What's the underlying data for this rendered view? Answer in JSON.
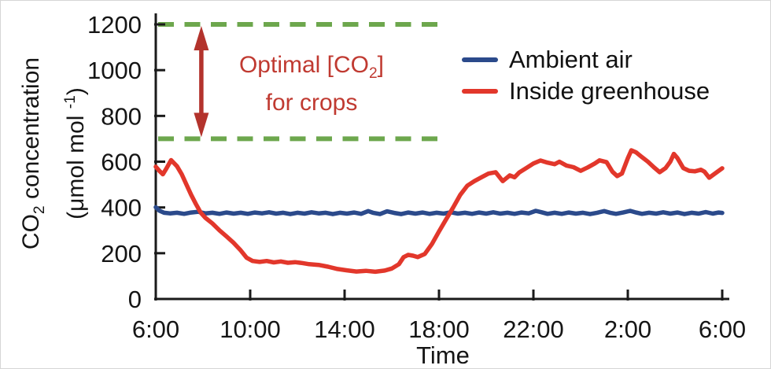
{
  "chart_data": {
    "type": "line",
    "title": "",
    "xlabel": "Time",
    "ylabel": {
      "pre": "CO",
      "sub": "2",
      "post": " concentration"
    },
    "ylabel_units": {
      "pre": "(μmol mol ",
      "sup": "-1",
      "post": ")"
    },
    "x_axis": {
      "tick_labels": [
        "6:00",
        "10:00",
        "14:00",
        "18:00",
        "22:00",
        "2:00",
        "6:00"
      ],
      "tick_hours": [
        0,
        4,
        8,
        12,
        16,
        20,
        24
      ],
      "xlim": [
        0,
        24
      ]
    },
    "y_axis": {
      "ticks": [
        0,
        200,
        400,
        600,
        800,
        1000,
        1200
      ],
      "ylim": [
        0,
        1200
      ]
    },
    "grid": false,
    "reference_band": {
      "upper_value": 1200,
      "lower_value": 700,
      "line_color": "#6da74d",
      "x_extent_hours": [
        0.1,
        12.3
      ],
      "arrow_hour": 1.93,
      "arrow_color": "#b3332c",
      "label_line1_pre": "Optimal [CO",
      "label_line1_sub": "2",
      "label_line1_post": "]",
      "label_line2": "for crops",
      "label_color": "#c03a31"
    },
    "legend": {
      "position": "top-right",
      "items": [
        {
          "label": "Ambient air",
          "color": "#2b4a8b"
        },
        {
          "label": "Inside greenhouse",
          "color": "#e2372b"
        }
      ]
    },
    "series": [
      {
        "name": "Ambient air",
        "color": "#2b4a8b",
        "points": [
          [
            0,
            401
          ],
          [
            0.15,
            386
          ],
          [
            0.35,
            377
          ],
          [
            0.6,
            374
          ],
          [
            0.9,
            377
          ],
          [
            1.2,
            372
          ],
          [
            1.5,
            378
          ],
          [
            1.8,
            381
          ],
          [
            2.1,
            374
          ],
          [
            2.4,
            377
          ],
          [
            2.7,
            372
          ],
          [
            3.0,
            378
          ],
          [
            3.3,
            373
          ],
          [
            3.6,
            377
          ],
          [
            3.9,
            372
          ],
          [
            4.2,
            378
          ],
          [
            4.5,
            374
          ],
          [
            4.8,
            379
          ],
          [
            5.1,
            373
          ],
          [
            5.4,
            377
          ],
          [
            5.7,
            371
          ],
          [
            6.0,
            377
          ],
          [
            6.3,
            373
          ],
          [
            6.6,
            379
          ],
          [
            6.9,
            374
          ],
          [
            7.2,
            377
          ],
          [
            7.5,
            371
          ],
          [
            7.8,
            377
          ],
          [
            8.1,
            373
          ],
          [
            8.4,
            378
          ],
          [
            8.7,
            372
          ],
          [
            9.0,
            384
          ],
          [
            9.2,
            377
          ],
          [
            9.5,
            371
          ],
          [
            9.8,
            383
          ],
          [
            10.1,
            376
          ],
          [
            10.4,
            371
          ],
          [
            10.7,
            378
          ],
          [
            11.0,
            373
          ],
          [
            11.3,
            378
          ],
          [
            11.6,
            372
          ],
          [
            11.9,
            377
          ],
          [
            12.2,
            373
          ],
          [
            12.5,
            379
          ],
          [
            12.8,
            373
          ],
          [
            13.1,
            377
          ],
          [
            13.4,
            372
          ],
          [
            13.7,
            378
          ],
          [
            14.0,
            373
          ],
          [
            14.3,
            379
          ],
          [
            14.6,
            373
          ],
          [
            14.9,
            377
          ],
          [
            15.2,
            372
          ],
          [
            15.5,
            378
          ],
          [
            15.8,
            374
          ],
          [
            16.1,
            385
          ],
          [
            16.35,
            379
          ],
          [
            16.6,
            372
          ],
          [
            16.9,
            377
          ],
          [
            17.2,
            372
          ],
          [
            17.5,
            378
          ],
          [
            17.8,
            373
          ],
          [
            18.1,
            377
          ],
          [
            18.4,
            371
          ],
          [
            18.7,
            377
          ],
          [
            19.0,
            384
          ],
          [
            19.25,
            377
          ],
          [
            19.5,
            372
          ],
          [
            19.8,
            378
          ],
          [
            20.1,
            385
          ],
          [
            20.35,
            378
          ],
          [
            20.6,
            372
          ],
          [
            20.9,
            377
          ],
          [
            21.2,
            373
          ],
          [
            21.5,
            379
          ],
          [
            21.8,
            373
          ],
          [
            22.1,
            378
          ],
          [
            22.4,
            371
          ],
          [
            22.7,
            377
          ],
          [
            23.0,
            373
          ],
          [
            23.3,
            380
          ],
          [
            23.6,
            373
          ],
          [
            23.85,
            378
          ],
          [
            24,
            376
          ]
        ]
      },
      {
        "name": "Inside greenhouse",
        "color": "#e2372b",
        "points": [
          [
            0,
            578
          ],
          [
            0.15,
            560
          ],
          [
            0.3,
            545
          ],
          [
            0.45,
            570
          ],
          [
            0.65,
            607
          ],
          [
            0.9,
            580
          ],
          [
            1.1,
            545
          ],
          [
            1.3,
            500
          ],
          [
            1.5,
            455
          ],
          [
            1.7,
            415
          ],
          [
            1.9,
            378
          ],
          [
            2.1,
            355
          ],
          [
            2.4,
            330
          ],
          [
            2.7,
            300
          ],
          [
            3.0,
            273
          ],
          [
            3.3,
            245
          ],
          [
            3.6,
            212
          ],
          [
            3.85,
            180
          ],
          [
            4.1,
            166
          ],
          [
            4.4,
            162
          ],
          [
            4.7,
            166
          ],
          [
            5.0,
            160
          ],
          [
            5.3,
            164
          ],
          [
            5.6,
            158
          ],
          [
            5.9,
            161
          ],
          [
            6.2,
            157
          ],
          [
            6.5,
            152
          ],
          [
            6.9,
            149
          ],
          [
            7.3,
            141
          ],
          [
            7.7,
            131
          ],
          [
            8.1,
            125
          ],
          [
            8.5,
            120
          ],
          [
            8.9,
            123
          ],
          [
            9.3,
            119
          ],
          [
            9.7,
            124
          ],
          [
            10.0,
            133
          ],
          [
            10.3,
            152
          ],
          [
            10.5,
            183
          ],
          [
            10.7,
            193
          ],
          [
            10.9,
            189
          ],
          [
            11.1,
            183
          ],
          [
            11.4,
            197
          ],
          [
            11.7,
            240
          ],
          [
            12.0,
            295
          ],
          [
            12.3,
            348
          ],
          [
            12.6,
            400
          ],
          [
            12.9,
            455
          ],
          [
            13.2,
            495
          ],
          [
            13.5,
            515
          ],
          [
            13.8,
            532
          ],
          [
            14.1,
            548
          ],
          [
            14.4,
            554
          ],
          [
            14.7,
            515
          ],
          [
            15.0,
            540
          ],
          [
            15.2,
            532
          ],
          [
            15.4,
            553
          ],
          [
            15.7,
            572
          ],
          [
            16.0,
            592
          ],
          [
            16.3,
            605
          ],
          [
            16.6,
            596
          ],
          [
            16.9,
            589
          ],
          [
            17.1,
            600
          ],
          [
            17.4,
            583
          ],
          [
            17.7,
            576
          ],
          [
            18.0,
            560
          ],
          [
            18.3,
            575
          ],
          [
            18.6,
            592
          ],
          [
            18.8,
            606
          ],
          [
            19.1,
            598
          ],
          [
            19.35,
            556
          ],
          [
            19.55,
            537
          ],
          [
            19.75,
            548
          ],
          [
            20.0,
            615
          ],
          [
            20.15,
            650
          ],
          [
            20.35,
            641
          ],
          [
            20.6,
            620
          ],
          [
            20.85,
            600
          ],
          [
            21.1,
            576
          ],
          [
            21.35,
            554
          ],
          [
            21.6,
            572
          ],
          [
            21.8,
            600
          ],
          [
            21.95,
            634
          ],
          [
            22.1,
            616
          ],
          [
            22.35,
            572
          ],
          [
            22.6,
            560
          ],
          [
            22.85,
            558
          ],
          [
            23.1,
            565
          ],
          [
            23.25,
            556
          ],
          [
            23.45,
            530
          ],
          [
            23.65,
            545
          ],
          [
            23.85,
            560
          ],
          [
            24,
            571
          ]
        ]
      }
    ]
  }
}
